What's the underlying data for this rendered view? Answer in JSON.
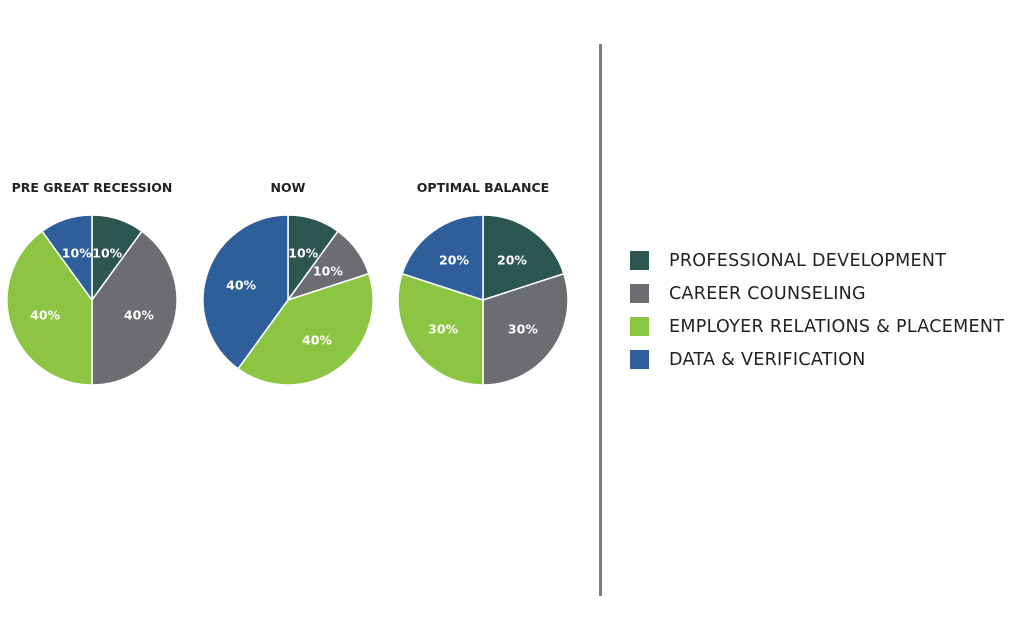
{
  "colors": {
    "professional_development": "#2d5650",
    "career_counseling": "#6c6d70",
    "employer_relations": "#8cc541",
    "data_verification": "#2f5f9b"
  },
  "legend": [
    {
      "label": "PROFESSIONAL DEVELOPMENT",
      "color": "#2d5650"
    },
    {
      "label": "CAREER COUNSELING",
      "color": "#6c6d70"
    },
    {
      "label": "EMPLOYER RELATIONS & PLACEMENT",
      "color": "#8cc541"
    },
    {
      "label": "DATA & VERIFICATION",
      "color": "#2f5f9b"
    }
  ],
  "chart_data": [
    {
      "type": "pie",
      "title": "PRE GREAT RECESSION",
      "slices": [
        {
          "name": "PROFESSIONAL DEVELOPMENT",
          "value": 10,
          "label": "10%",
          "color": "#2d5650"
        },
        {
          "name": "CAREER COUNSELING",
          "value": 40,
          "label": "40%",
          "color": "#6c6d70"
        },
        {
          "name": "EMPLOYER RELATIONS & PLACEMENT",
          "value": 40,
          "label": "40%",
          "color": "#8cc541"
        },
        {
          "name": "DATA & VERIFICATION",
          "value": 10,
          "label": "10%",
          "color": "#2f5f9b"
        }
      ]
    },
    {
      "type": "pie",
      "title": "NOW",
      "slices": [
        {
          "name": "PROFESSIONAL DEVELOPMENT",
          "value": 10,
          "label": "10%",
          "color": "#2d5650"
        },
        {
          "name": "CAREER COUNSELING",
          "value": 10,
          "label": "10%",
          "color": "#6c6d70"
        },
        {
          "name": "EMPLOYER RELATIONS & PLACEMENT",
          "value": 40,
          "label": "40%",
          "color": "#8cc541"
        },
        {
          "name": "DATA & VERIFICATION",
          "value": 40,
          "label": "40%",
          "color": "#2f5f9b"
        }
      ]
    },
    {
      "type": "pie",
      "title": "OPTIMAL BALANCE",
      "slices": [
        {
          "name": "PROFESSIONAL DEVELOPMENT",
          "value": 20,
          "label": "20%",
          "color": "#2d5650"
        },
        {
          "name": "CAREER COUNSELING",
          "value": 30,
          "label": "30%",
          "color": "#6c6d70"
        },
        {
          "name": "EMPLOYER RELATIONS & PLACEMENT",
          "value": 30,
          "label": "30%",
          "color": "#8cc541"
        },
        {
          "name": "DATA & VERIFICATION",
          "value": 20,
          "label": "20%",
          "color": "#2f5f9b"
        }
      ]
    }
  ]
}
